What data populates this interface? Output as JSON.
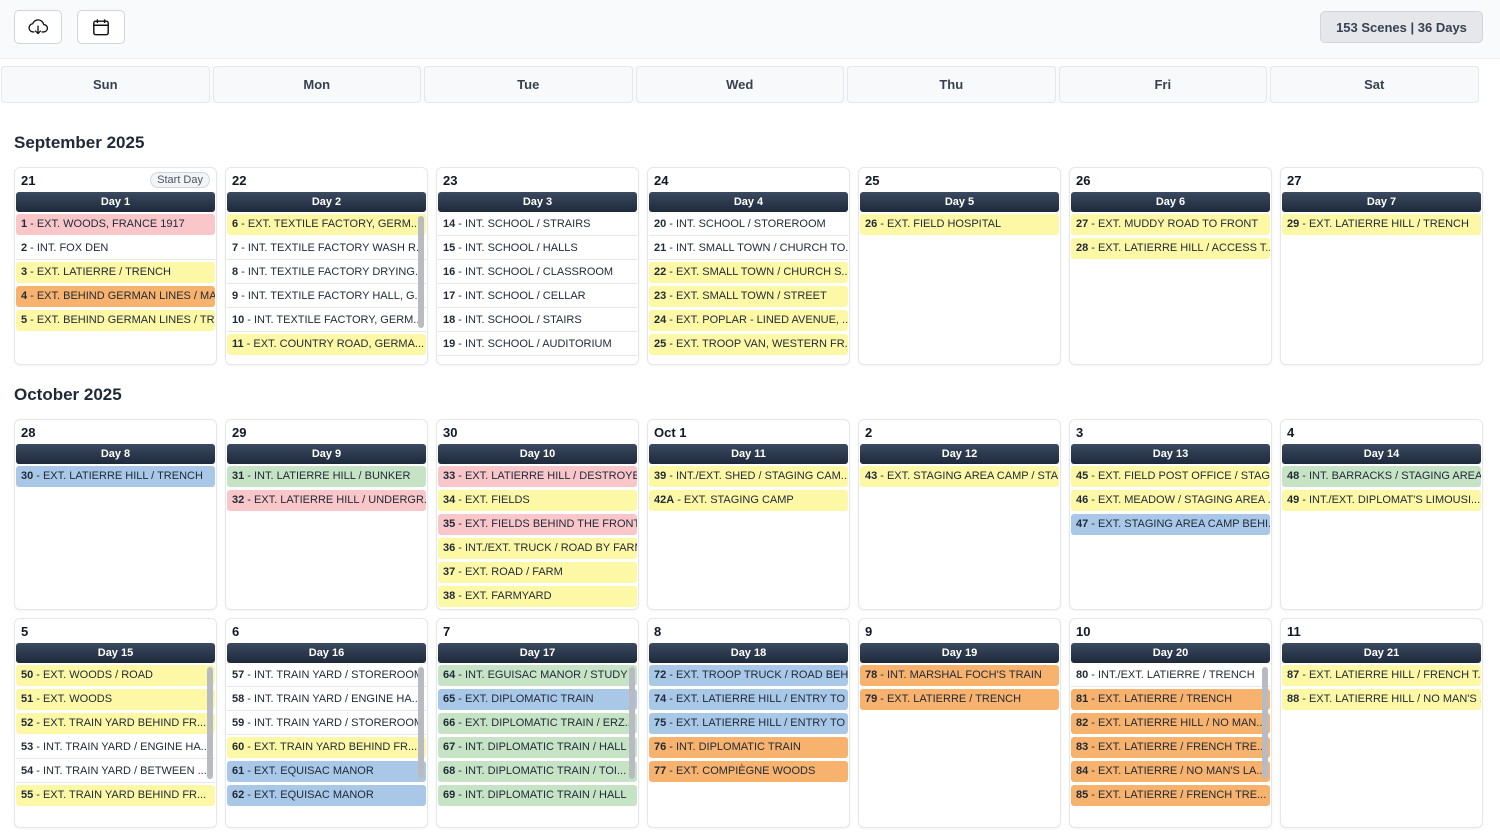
{
  "toolbar": {
    "summary": "153 Scenes | 36 Days"
  },
  "weekdays": [
    "Sun",
    "Mon",
    "Tue",
    "Wed",
    "Thu",
    "Fri",
    "Sat"
  ],
  "months": [
    {
      "title": "September 2025",
      "weeks": [
        [
          {
            "date": "21",
            "badge": "Start Day",
            "day": "Day 1",
            "scenes": [
              {
                "number": "1",
                "title": "- EXT. WOODS, FRANCE 1917",
                "color": "red"
              },
              {
                "number": "2",
                "title": "- INT. FOX DEN",
                "color": "white"
              },
              {
                "number": "3",
                "title": "- EXT. LATIERRE / TRENCH",
                "color": "yellow"
              },
              {
                "number": "4",
                "title": "- EXT. BEHIND GERMAN LINES / MA...",
                "color": "orange"
              },
              {
                "number": "5",
                "title": "- EXT. BEHIND GERMAN LINES / TR...",
                "color": "yellow"
              }
            ]
          },
          {
            "date": "22",
            "day": "Day 2",
            "scrollbar": true,
            "scenes": [
              {
                "number": "6",
                "title": "- EXT. TEXTILE FACTORY, GERM...",
                "color": "yellow"
              },
              {
                "number": "7",
                "title": "- INT. TEXTILE FACTORY WASH R...",
                "color": "white"
              },
              {
                "number": "8",
                "title": "- INT. TEXTILE FACTORY DRYING...",
                "color": "white"
              },
              {
                "number": "9",
                "title": "- INT. TEXTILE FACTORY HALL, G...",
                "color": "white"
              },
              {
                "number": "10",
                "title": "- INT. TEXTILE FACTORY, GERM...",
                "color": "white"
              },
              {
                "number": "11",
                "title": "- EXT. COUNTRY ROAD, GERMA...",
                "color": "yellow"
              }
            ]
          },
          {
            "date": "23",
            "day": "Day 3",
            "scenes": [
              {
                "number": "14",
                "title": "- INT. SCHOOL / STRAIRS",
                "color": "white"
              },
              {
                "number": "15",
                "title": "- INT. SCHOOL / HALLS",
                "color": "white"
              },
              {
                "number": "16",
                "title": "- INT. SCHOOL / CLASSROOM",
                "color": "white"
              },
              {
                "number": "17",
                "title": "- INT. SCHOOL / CELLAR",
                "color": "white"
              },
              {
                "number": "18",
                "title": "- INT. SCHOOL / STAIRS",
                "color": "white"
              },
              {
                "number": "19",
                "title": "- INT. SCHOOL / AUDITORIUM",
                "color": "white"
              }
            ]
          },
          {
            "date": "24",
            "day": "Day 4",
            "scenes": [
              {
                "number": "20",
                "title": "- INT. SCHOOL / STOREROOM",
                "color": "white"
              },
              {
                "number": "21",
                "title": "- INT. SMALL TOWN / CHURCH TO...",
                "color": "white"
              },
              {
                "number": "22",
                "title": "- EXT. SMALL TOWN / CHURCH S...",
                "color": "yellow"
              },
              {
                "number": "23",
                "title": "- EXT. SMALL TOWN / STREET",
                "color": "yellow"
              },
              {
                "number": "24",
                "title": "- EXT. POPLAR - LINED AVENUE, ...",
                "color": "yellow"
              },
              {
                "number": "25",
                "title": "- EXT. TROOP VAN, WESTERN FR...",
                "color": "yellow"
              }
            ]
          },
          {
            "date": "25",
            "day": "Day 5",
            "scenes": [
              {
                "number": "26",
                "title": "- EXT. FIELD HOSPITAL",
                "color": "yellow"
              }
            ]
          },
          {
            "date": "26",
            "day": "Day 6",
            "scenes": [
              {
                "number": "27",
                "title": "- EXT. MUDDY ROAD TO FRONT",
                "color": "yellow"
              },
              {
                "number": "28",
                "title": "- EXT. LATIERRE HILL / ACCESS T...",
                "color": "yellow"
              }
            ]
          },
          {
            "date": "27",
            "day": "Day 7",
            "scenes": [
              {
                "number": "29",
                "title": "- EXT. LATIERRE HILL / TRENCH",
                "color": "yellow"
              }
            ]
          }
        ]
      ]
    },
    {
      "title": "October 2025",
      "weeks": [
        [
          {
            "date": "28",
            "day": "Day 8",
            "scenes": [
              {
                "number": "30",
                "title": "- EXT. LATIERRE HILL / TRENCH",
                "color": "blue"
              }
            ]
          },
          {
            "date": "29",
            "day": "Day 9",
            "scenes": [
              {
                "number": "31",
                "title": "- INT. LATIERRE HILL / BUNKER",
                "color": "green"
              },
              {
                "number": "32",
                "title": "- EXT. LATIERRE HILL / UNDERGR...",
                "color": "red"
              }
            ]
          },
          {
            "date": "30",
            "day": "Day 10",
            "scenes": [
              {
                "number": "33",
                "title": "- EXT. LATIERRE HILL / DESTROYE...",
                "color": "red"
              },
              {
                "number": "34",
                "title": "- EXT. FIELDS",
                "color": "yellow"
              },
              {
                "number": "35",
                "title": "- EXT. FIELDS BEHIND THE FRONT",
                "color": "red"
              },
              {
                "number": "36",
                "title": "- INT./EXT. TRUCK / ROAD BY FARM",
                "color": "yellow"
              },
              {
                "number": "37",
                "title": "- EXT. ROAD / FARM",
                "color": "yellow"
              },
              {
                "number": "38",
                "title": "- EXT. FARMYARD",
                "color": "yellow"
              }
            ]
          },
          {
            "date": "Oct 1",
            "day": "Day 11",
            "scenes": [
              {
                "number": "39",
                "title": "- INT./EXT. SHED / STAGING CAM...",
                "color": "yellow"
              },
              {
                "number": "42A",
                "title": "- EXT. STAGING CAMP",
                "color": "yellow"
              }
            ]
          },
          {
            "date": "2",
            "day": "Day 12",
            "scenes": [
              {
                "number": "43",
                "title": "- EXT. STAGING AREA CAMP / STA...",
                "color": "yellow"
              }
            ]
          },
          {
            "date": "3",
            "day": "Day 13",
            "scenes": [
              {
                "number": "45",
                "title": "- EXT. FIELD POST OFFICE / STAGI...",
                "color": "yellow"
              },
              {
                "number": "46",
                "title": "- EXT. MEADOW / STAGING AREA ...",
                "color": "yellow"
              },
              {
                "number": "47",
                "title": "- EXT. STAGING AREA CAMP BEHI...",
                "color": "blue"
              }
            ]
          },
          {
            "date": "4",
            "day": "Day 14",
            "scenes": [
              {
                "number": "48",
                "title": "- INT. BARRACKS / STAGING AREA...",
                "color": "green"
              },
              {
                "number": "49",
                "title": "- INT./EXT. DIPLOMAT'S LIMOUSI...",
                "color": "yellow"
              }
            ]
          }
        ],
        [
          {
            "date": "5",
            "day": "Day 15",
            "scrollbar": true,
            "scenes": [
              {
                "number": "50",
                "title": "- EXT. WOODS / ROAD",
                "color": "yellow"
              },
              {
                "number": "51",
                "title": "- EXT. WOODS",
                "color": "yellow"
              },
              {
                "number": "52",
                "title": "- EXT. TRAIN YARD BEHIND FR...",
                "color": "yellow"
              },
              {
                "number": "53",
                "title": "- INT. TRAIN YARD / ENGINE HA...",
                "color": "white"
              },
              {
                "number": "54",
                "title": "- INT. TRAIN YARD / BETWEEN ...",
                "color": "white"
              },
              {
                "number": "55",
                "title": "- EXT. TRAIN YARD BEHIND FR...",
                "color": "yellow"
              }
            ]
          },
          {
            "date": "6",
            "day": "Day 16",
            "scrollbar": true,
            "scenes": [
              {
                "number": "57",
                "title": "- INT. TRAIN YARD / STOREROOM",
                "color": "white"
              },
              {
                "number": "58",
                "title": "- INT. TRAIN YARD / ENGINE HA...",
                "color": "white"
              },
              {
                "number": "59",
                "title": "- INT. TRAIN YARD / STOREROOM",
                "color": "white"
              },
              {
                "number": "60",
                "title": "- EXT. TRAIN YARD BEHIND FR...",
                "color": "yellow"
              },
              {
                "number": "61",
                "title": "- EXT. EQUISAC MANOR",
                "color": "blue"
              },
              {
                "number": "62",
                "title": "- EXT. EQUISAC MANOR",
                "color": "blue"
              }
            ]
          },
          {
            "date": "7",
            "day": "Day 17",
            "scrollbar": true,
            "scenes": [
              {
                "number": "64",
                "title": "- INT. EGUISAC MANOR / STUDY",
                "color": "green"
              },
              {
                "number": "65",
                "title": "- EXT. DIPLOMATIC TRAIN",
                "color": "blue"
              },
              {
                "number": "66",
                "title": "- EXT. DIPLOMATIC TRAIN / ERZ...",
                "color": "green"
              },
              {
                "number": "67",
                "title": "- INT. DIPLOMATIC TRAIN / HALL",
                "color": "green"
              },
              {
                "number": "68",
                "title": "- INT. DIPLOMATIC TRAIN / TOI...",
                "color": "green"
              },
              {
                "number": "69",
                "title": "- INT. DIPLOMATIC TRAIN / HALL",
                "color": "green"
              }
            ]
          },
          {
            "date": "8",
            "day": "Day 18",
            "scenes": [
              {
                "number": "72",
                "title": "- EXT. TROOP TRUCK / ROAD BEHI...",
                "color": "blue"
              },
              {
                "number": "74",
                "title": "- EXT. LATIERRE HILL / ENTRY TO ...",
                "color": "blue"
              },
              {
                "number": "75",
                "title": "- EXT. LATIERRE HILL / ENTRY TO ...",
                "color": "blue"
              },
              {
                "number": "76",
                "title": "- INT. DIPLOMATIC TRAIN",
                "color": "orange"
              },
              {
                "number": "77",
                "title": "- EXT. COMPIÈGNE WOODS",
                "color": "orange"
              }
            ]
          },
          {
            "date": "9",
            "day": "Day 19",
            "scenes": [
              {
                "number": "78",
                "title": "- INT. MARSHAL FOCH'S TRAIN",
                "color": "orange"
              },
              {
                "number": "79",
                "title": "- EXT. LATIERRE / TRENCH",
                "color": "orange"
              }
            ]
          },
          {
            "date": "10",
            "day": "Day 20",
            "scrollbar": true,
            "scenes": [
              {
                "number": "80",
                "title": "- INT./EXT. LATIERRE / TRENCH",
                "color": "white"
              },
              {
                "number": "81",
                "title": "- EXT. LATIERRE / TRENCH",
                "color": "orange"
              },
              {
                "number": "82",
                "title": "- EXT. LATIERRE HILL / NO MAN...",
                "color": "orange"
              },
              {
                "number": "83",
                "title": "- EXT. LATIERRE / FRENCH TRE...",
                "color": "orange"
              },
              {
                "number": "84",
                "title": "- EXT. LATIERRE / NO MAN'S LA...",
                "color": "orange"
              },
              {
                "number": "85",
                "title": "- EXT. LATIERRE / FRENCH TRE...",
                "color": "orange"
              }
            ]
          },
          {
            "date": "11",
            "day": "Day 21",
            "scenes": [
              {
                "number": "87",
                "title": "- EXT. LATIERRE HILL / FRENCH T...",
                "color": "yellow"
              },
              {
                "number": "88",
                "title": "- EXT. LATIERRE HILL / NO MAN'S ...",
                "color": "yellow"
              }
            ]
          }
        ]
      ]
    }
  ]
}
